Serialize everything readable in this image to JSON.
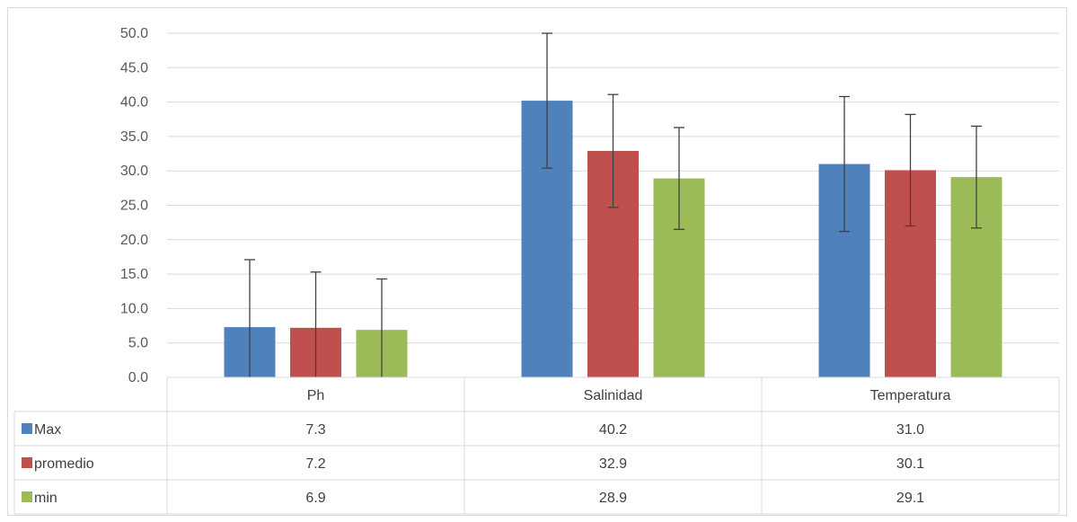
{
  "chart_data": {
    "type": "bar",
    "title": "",
    "xlabel": "",
    "ylabel": "",
    "ylim": [
      0,
      50
    ],
    "y_ticks": [
      "0.0",
      "5.0",
      "10.0",
      "15.0",
      "20.0",
      "25.0",
      "30.0",
      "35.0",
      "40.0",
      "45.0",
      "50.0"
    ],
    "grid": true,
    "legend": "data-table",
    "categories": [
      "Ph",
      "Salinidad",
      "Temperatura"
    ],
    "series": [
      {
        "name": "Max",
        "color": "#4f81bd",
        "values": [
          7.3,
          40.2,
          31.0
        ],
        "labels": [
          "7.3",
          "40.2",
          "31.0"
        ],
        "error": [
          9.8,
          9.8,
          9.8
        ]
      },
      {
        "name": "promedio",
        "color": "#c0504d",
        "values": [
          7.2,
          32.9,
          30.1
        ],
        "labels": [
          "7.2",
          "32.9",
          "30.1"
        ],
        "error": [
          8.1,
          8.2,
          8.1
        ]
      },
      {
        "name": "min",
        "color": "#9bbb59",
        "values": [
          6.9,
          28.9,
          29.1
        ],
        "labels": [
          "6.9",
          "28.9",
          "29.1"
        ],
        "error": [
          7.4,
          7.4,
          7.4
        ]
      }
    ]
  }
}
